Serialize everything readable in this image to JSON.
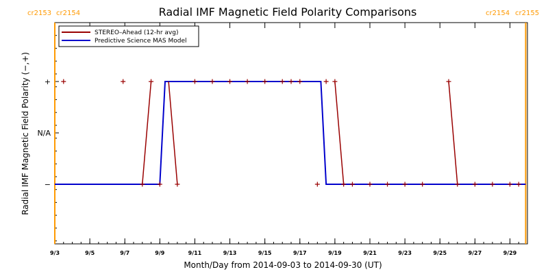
{
  "chart_data": {
    "type": "line",
    "title": "Radial IMF Magnetic Field Polarity Comparisons",
    "xlabel": "Month/Day from 2014-09-03 to 2014-09-30 (UT)",
    "ylabel": "Radial IMF Magnetic Field Polarity (−,+)",
    "xlim": [
      "2014-09-03",
      "2014-09-30"
    ],
    "x_ticks": [
      "9/3",
      "9/5",
      "9/7",
      "9/9",
      "9/11",
      "9/13",
      "9/15",
      "9/17",
      "9/19",
      "9/21",
      "9/23",
      "9/25",
      "9/27",
      "9/29"
    ],
    "y_ticks": [
      "+",
      "N/A",
      "−"
    ],
    "y_levels": {
      "+": 1,
      "N/A": 0,
      "−": -1
    },
    "carrington_rotations": [
      {
        "date": "2014-09-03",
        "label_left": "cr2153",
        "label_right": "cr2154",
        "color": "#ff9900"
      },
      {
        "date": "2014-09-29.9",
        "label_left": "cr2154",
        "label_right": "cr2155",
        "color": "#ff9900"
      }
    ],
    "series": [
      {
        "name": "STEREO–Ahead (12-hr avg)",
        "color": "#990000",
        "points": [
          [
            "2014-09-03.5",
            1
          ],
          [
            "2014-09-06.9",
            1
          ],
          [
            "2014-09-08.0",
            -1
          ],
          [
            "2014-09-08.5",
            1
          ],
          [
            "2014-09-09.0",
            -1
          ],
          [
            "2014-09-10.0",
            -1
          ],
          [
            "2014-09-11.0",
            1
          ],
          [
            "2014-09-12.0",
            1
          ],
          [
            "2014-09-13.0",
            1
          ],
          [
            "2014-09-14.0",
            1
          ],
          [
            "2014-09-15.0",
            1
          ],
          [
            "2014-09-16.0",
            1
          ],
          [
            "2014-09-16.5",
            1
          ],
          [
            "2014-09-17.0",
            1
          ],
          [
            "2014-09-18.0",
            -1
          ],
          [
            "2014-09-18.5",
            1
          ],
          [
            "2014-09-19.0",
            1
          ],
          [
            "2014-09-19.5",
            -1
          ],
          [
            "2014-09-20.0",
            -1
          ],
          [
            "2014-09-21.0",
            -1
          ],
          [
            "2014-09-22.0",
            -1
          ],
          [
            "2014-09-23.0",
            -1
          ],
          [
            "2014-09-24.0",
            -1
          ],
          [
            "2014-09-25.5",
            1
          ],
          [
            "2014-09-26.0",
            -1
          ],
          [
            "2014-09-27.0",
            -1
          ],
          [
            "2014-09-28.0",
            -1
          ],
          [
            "2014-09-29.0",
            -1
          ],
          [
            "2014-09-29.5",
            -1
          ]
        ],
        "line_segments": [
          [
            [
              "2014-09-08.0",
              -1
            ],
            [
              "2014-09-08.5",
              1
            ]
          ],
          [
            [
              "2014-09-09.5",
              1
            ],
            [
              "2014-09-10.0",
              -1
            ]
          ],
          [
            [
              "2014-09-19.0",
              1
            ],
            [
              "2014-09-19.5",
              -1
            ]
          ],
          [
            [
              "2014-09-25.5",
              1
            ],
            [
              "2014-09-26.0",
              -1
            ]
          ]
        ],
        "unmarked_points": [
          [
            "2014-09-09.5",
            1
          ]
        ]
      },
      {
        "name": "Predictive Science MAS Model",
        "color": "#0000cc",
        "step": [
          [
            "2014-09-03.0",
            -1
          ],
          [
            "2014-09-09.0",
            -1
          ],
          [
            "2014-09-09.3",
            1
          ],
          [
            "2014-09-18.2",
            1
          ],
          [
            "2014-09-18.5",
            -1
          ],
          [
            "2014-09-29.9",
            -1
          ]
        ]
      }
    ]
  }
}
